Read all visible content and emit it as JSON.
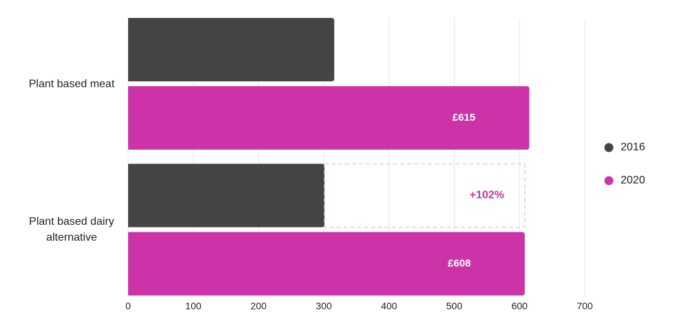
{
  "chart_data": {
    "type": "bar",
    "orientation": "horizontal",
    "categories": [
      "Plant based meat",
      "Plant based dairy alternative"
    ],
    "series": [
      {
        "name": "2016",
        "color": "#444444",
        "values": [
          316,
          301
        ]
      },
      {
        "name": "2020",
        "color": "#cc33a8",
        "values": [
          615,
          608
        ],
        "value_labels": [
          "£615",
          "£608"
        ]
      }
    ],
    "annotation": "+102%",
    "xlim": [
      0,
      700
    ],
    "xticks": [
      0,
      100,
      200,
      300,
      400,
      500,
      600,
      700
    ],
    "grid": true,
    "legend": "right"
  }
}
